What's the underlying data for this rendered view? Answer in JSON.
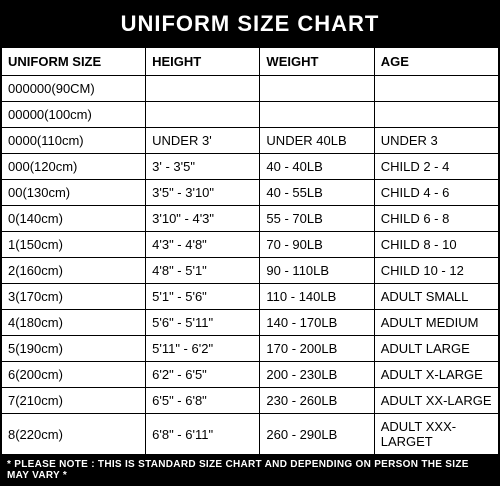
{
  "title": "UNIFORM SIZE CHART",
  "columns": [
    "UNIFORM SIZE",
    "HEIGHT",
    "WEIGHT",
    "AGE"
  ],
  "rows": [
    {
      "size": "000000(90CM)",
      "height": "",
      "weight": "",
      "age": ""
    },
    {
      "size": "00000(100cm)",
      "height": "",
      "weight": "",
      "age": ""
    },
    {
      "size": "0000(110cm)",
      "height": "UNDER 3'",
      "weight": "UNDER 40LB",
      "age": "UNDER 3"
    },
    {
      "size": "000(120cm)",
      "height": "3' - 3'5\"",
      "weight": "40 - 40LB",
      "age": "CHILD 2 - 4"
    },
    {
      "size": "00(130cm)",
      "height": "3'5\" - 3'10\"",
      "weight": "40 - 55LB",
      "age": "CHILD 4 - 6"
    },
    {
      "size": "0(140cm)",
      "height": "3'10\" - 4'3\"",
      "weight": "55 - 70LB",
      "age": "CHILD 6 - 8"
    },
    {
      "size": "1(150cm)",
      "height": "4'3\" - 4'8\"",
      "weight": "70 - 90LB",
      "age": "CHILD 8 - 10"
    },
    {
      "size": "2(160cm)",
      "height": "4'8\" - 5'1\"",
      "weight": "90 - 110LB",
      "age": "CHILD 10 - 12"
    },
    {
      "size": "3(170cm)",
      "height": "5'1\" - 5'6\"",
      "weight": "110 - 140LB",
      "age": "ADULT SMALL"
    },
    {
      "size": "4(180cm)",
      "height": "5'6\" - 5'11\"",
      "weight": "140 - 170LB",
      "age": "ADULT MEDIUM"
    },
    {
      "size": "5(190cm)",
      "height": "5'11\" - 6'2\"",
      "weight": "170 - 200LB",
      "age": "ADULT LARGE"
    },
    {
      "size": "6(200cm)",
      "height": "6'2\" - 6'5\"",
      "weight": "200 - 230LB",
      "age": "ADULT X-LARGE"
    },
    {
      "size": "7(210cm)",
      "height": "6'5\" - 6'8\"",
      "weight": "230 - 260LB",
      "age": "ADULT XX-LARGE"
    },
    {
      "size": "8(220cm)",
      "height": "6'8\" - 6'11\"",
      "weight": "260 - 290LB",
      "age": "ADULT XXX-LARGET"
    }
  ],
  "footer_note": "* PLEASE NOTE : THIS IS STANDARD SIZE CHART AND DEPENDING ON PERSON THE SIZE MAY VARY *",
  "styles": {
    "title_bg": "#000000",
    "title_color": "#ffffff",
    "title_fontsize": 22,
    "header_fontsize": 13,
    "cell_fontsize": 13,
    "footer_fontsize": 10,
    "border_color": "#000000",
    "cell_bg": "#ffffff",
    "text_color": "#000000"
  }
}
